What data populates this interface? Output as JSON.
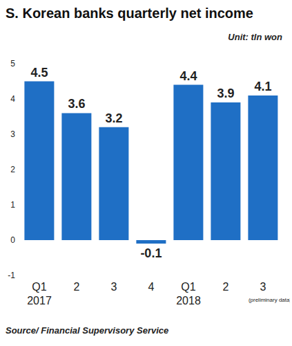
{
  "chart_data": {
    "type": "bar",
    "title": "S. Korean banks quarterly net income",
    "subtitle": "Unit: tln won",
    "source": "Source/ Financial Supervisory Service",
    "categories": [
      "Q1\n2017",
      "2",
      "3",
      "4",
      "Q1\n2018",
      "2",
      "3\n(preliminary data)"
    ],
    "values": [
      4.5,
      3.6,
      3.2,
      -0.1,
      4.4,
      3.9,
      4.1
    ],
    "color": "#1f6fc5",
    "ylim": [
      -1,
      5
    ],
    "yticks": [
      -1,
      0,
      1,
      2,
      3,
      4,
      5
    ],
    "grid": false,
    "data_labels": true
  }
}
